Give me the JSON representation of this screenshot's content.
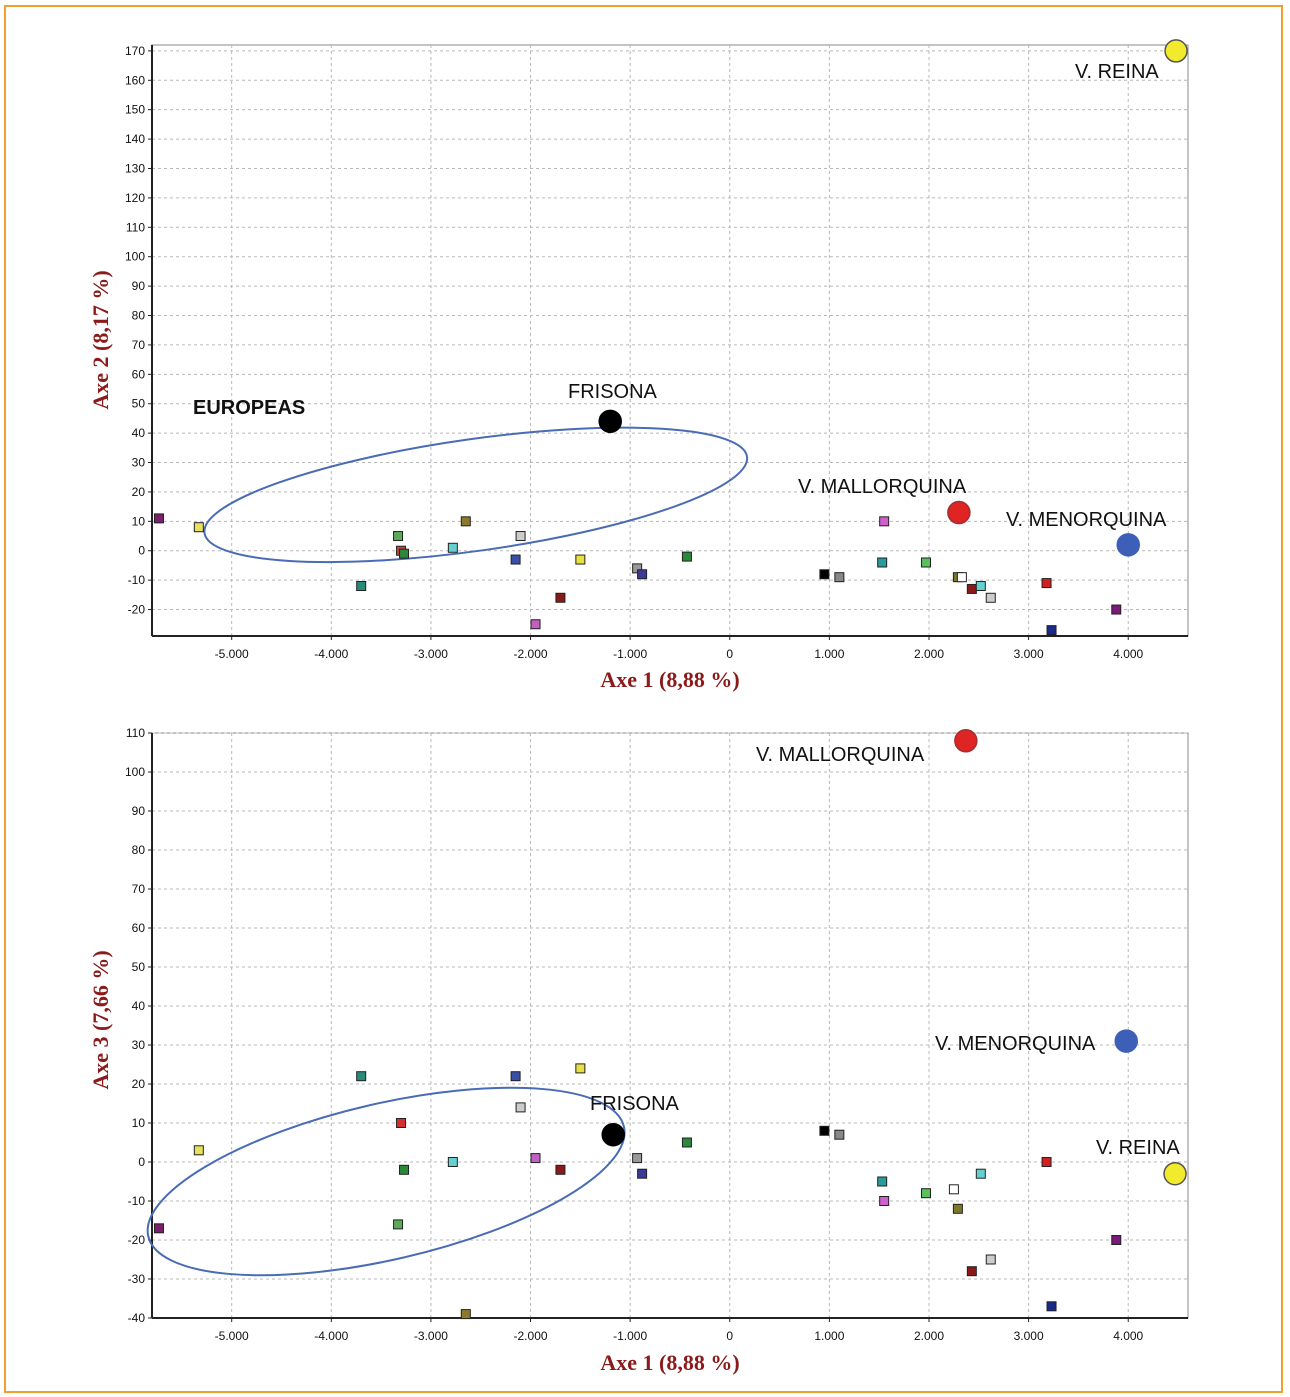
{
  "chart_data": [
    {
      "type": "scatter",
      "xlabel": "Axe 1 (8,88 %)",
      "ylabel": "Axe 2 (8,17 %)",
      "xlim": [
        -5800,
        4600
      ],
      "ylim": [
        -29,
        172
      ],
      "xticks": [
        -5000,
        -4000,
        -3000,
        -2000,
        -1000,
        0,
        1000,
        2000,
        3000,
        4000
      ],
      "xtick_labels": [
        "-5.000",
        "-4.000",
        "-3.000",
        "-2.000",
        "-1.000",
        "0",
        "1.000",
        "2.000",
        "3.000",
        "4.000"
      ],
      "yticks": [
        -20,
        -10,
        0,
        10,
        20,
        30,
        40,
        50,
        60,
        70,
        80,
        90,
        100,
        110,
        120,
        130,
        140,
        150,
        160,
        170
      ],
      "grid": true,
      "highlighted": [
        {
          "label": "FRISONA",
          "x": -1200,
          "y": 44,
          "color": "#000000"
        },
        {
          "label": "V. MALLORQUINA",
          "x": 2300,
          "y": 13,
          "color": "#e02424"
        },
        {
          "label": "V. MENORQUINA",
          "x": 4000,
          "y": 2,
          "color": "#3d5fb8"
        },
        {
          "label": "V. REINA",
          "x": 4480,
          "y": 170,
          "color": "#f2ea2c"
        }
      ],
      "annotations": [
        {
          "text": "EUROPEAS"
        }
      ],
      "ellipse": {
        "cx": -2550,
        "cy": 19,
        "rx": 2750,
        "ry": 19,
        "rotate_deg": -8,
        "color": "#4a6bb5"
      },
      "points": [
        {
          "x": -5730,
          "y": 11,
          "color": "#7b1f6b"
        },
        {
          "x": -5330,
          "y": 8,
          "color": "#e8e060"
        },
        {
          "x": -3700,
          "y": -12,
          "color": "#2a8a7a"
        },
        {
          "x": -3330,
          "y": 5,
          "color": "#5aaa5a"
        },
        {
          "x": -3300,
          "y": 0,
          "color": "#c84040"
        },
        {
          "x": -3270,
          "y": -1,
          "color": "#2a8a3a"
        },
        {
          "x": -2780,
          "y": 1,
          "color": "#66d0d0"
        },
        {
          "x": -2650,
          "y": 10,
          "color": "#8a7a2a"
        },
        {
          "x": -2150,
          "y": -3,
          "color": "#3a4fa8"
        },
        {
          "x": -2100,
          "y": 5,
          "color": "#cccccc"
        },
        {
          "x": -1950,
          "y": -25,
          "color": "#c060c0"
        },
        {
          "x": -1700,
          "y": -16,
          "color": "#8a1a1a"
        },
        {
          "x": -1500,
          "y": -3,
          "color": "#e8e040"
        },
        {
          "x": -930,
          "y": -6,
          "color": "#999999"
        },
        {
          "x": -880,
          "y": -8,
          "color": "#3a3a9a"
        },
        {
          "x": -430,
          "y": -2,
          "color": "#2a8a3a"
        },
        {
          "x": 950,
          "y": -8,
          "color": "#000000"
        },
        {
          "x": 1100,
          "y": -9,
          "color": "#888888"
        },
        {
          "x": 1550,
          "y": 10,
          "color": "#d060d0"
        },
        {
          "x": 1530,
          "y": -4,
          "color": "#2a9a9a"
        },
        {
          "x": 1970,
          "y": -4,
          "color": "#5ac05a"
        },
        {
          "x": 2290,
          "y": -9,
          "color": "#7a7a2a"
        },
        {
          "x": 2330,
          "y": -9,
          "color": "#ffffff"
        },
        {
          "x": 2430,
          "y": -13,
          "color": "#8a1a1a"
        },
        {
          "x": 2520,
          "y": -12,
          "color": "#66d0d0"
        },
        {
          "x": 2620,
          "y": -16,
          "color": "#cccccc"
        },
        {
          "x": 3180,
          "y": -11,
          "color": "#d02020"
        },
        {
          "x": 3230,
          "y": -27,
          "color": "#1a2a8a"
        },
        {
          "x": 3880,
          "y": -20,
          "color": "#7a1a7a"
        }
      ]
    },
    {
      "type": "scatter",
      "xlabel": "Axe 1 (8,88 %)",
      "ylabel": "Axe 3 (7,66 %)",
      "xlim": [
        -5800,
        4600
      ],
      "ylim": [
        -40,
        110
      ],
      "xticks": [
        -5000,
        -4000,
        -3000,
        -2000,
        -1000,
        0,
        1000,
        2000,
        3000,
        4000
      ],
      "xtick_labels": [
        "-5.000",
        "-4.000",
        "-3.000",
        "-2.000",
        "-1.000",
        "0",
        "1.000",
        "2.000",
        "3.000",
        "4.000"
      ],
      "yticks": [
        -40,
        -30,
        -20,
        -10,
        0,
        10,
        20,
        30,
        40,
        50,
        60,
        70,
        80,
        90,
        100,
        110
      ],
      "grid": true,
      "highlighted": [
        {
          "label": "FRISONA",
          "x": -1170,
          "y": 7,
          "color": "#000000"
        },
        {
          "label": "V. MALLORQUINA",
          "x": 2370,
          "y": 108,
          "color": "#e02424"
        },
        {
          "label": "V. MENORQUINA",
          "x": 3980,
          "y": 31,
          "color": "#3d5fb8"
        },
        {
          "label": "V. REINA",
          "x": 4470,
          "y": -3,
          "color": "#f2ea2c"
        }
      ],
      "ellipse": {
        "cx": -3450,
        "cy": -5,
        "rx": 2450,
        "ry": 20,
        "rotate_deg": -13,
        "color": "#4a6bb5"
      },
      "points": [
        {
          "x": -5730,
          "y": -17,
          "color": "#7b1f6b"
        },
        {
          "x": -5330,
          "y": 3,
          "color": "#e8e060"
        },
        {
          "x": -3700,
          "y": 22,
          "color": "#2a8a7a"
        },
        {
          "x": -3330,
          "y": -16,
          "color": "#5aaa5a"
        },
        {
          "x": -3300,
          "y": 10,
          "color": "#d03030"
        },
        {
          "x": -3270,
          "y": -2,
          "color": "#2a8a3a"
        },
        {
          "x": -2780,
          "y": 0,
          "color": "#66d0d0"
        },
        {
          "x": -2650,
          "y": -39,
          "color": "#8a7a2a"
        },
        {
          "x": -2150,
          "y": 22,
          "color": "#3a4fa8"
        },
        {
          "x": -2100,
          "y": 14,
          "color": "#cccccc"
        },
        {
          "x": -1950,
          "y": 1,
          "color": "#c060c0"
        },
        {
          "x": -1700,
          "y": -2,
          "color": "#8a1a1a"
        },
        {
          "x": -1500,
          "y": 24,
          "color": "#e8e040"
        },
        {
          "x": -930,
          "y": 1,
          "color": "#999999"
        },
        {
          "x": -880,
          "y": -3,
          "color": "#3a3a9a"
        },
        {
          "x": -430,
          "y": 5,
          "color": "#2a8a3a"
        },
        {
          "x": 950,
          "y": 8,
          "color": "#000000"
        },
        {
          "x": 1100,
          "y": 7,
          "color": "#888888"
        },
        {
          "x": 1530,
          "y": -5,
          "color": "#2a9a9a"
        },
        {
          "x": 1550,
          "y": -10,
          "color": "#d060d0"
        },
        {
          "x": 1970,
          "y": -8,
          "color": "#5ac05a"
        },
        {
          "x": 2250,
          "y": -7,
          "color": "#ffffff"
        },
        {
          "x": 2290,
          "y": -12,
          "color": "#7a7a2a"
        },
        {
          "x": 2430,
          "y": -28,
          "color": "#8a1a1a"
        },
        {
          "x": 2520,
          "y": -3,
          "color": "#66d0d0"
        },
        {
          "x": 2620,
          "y": -25,
          "color": "#cccccc"
        },
        {
          "x": 3180,
          "y": 0,
          "color": "#d02020"
        },
        {
          "x": 3230,
          "y": -37,
          "color": "#1a2a8a"
        },
        {
          "x": 3880,
          "y": -20,
          "color": "#7a1a7a"
        }
      ]
    }
  ]
}
